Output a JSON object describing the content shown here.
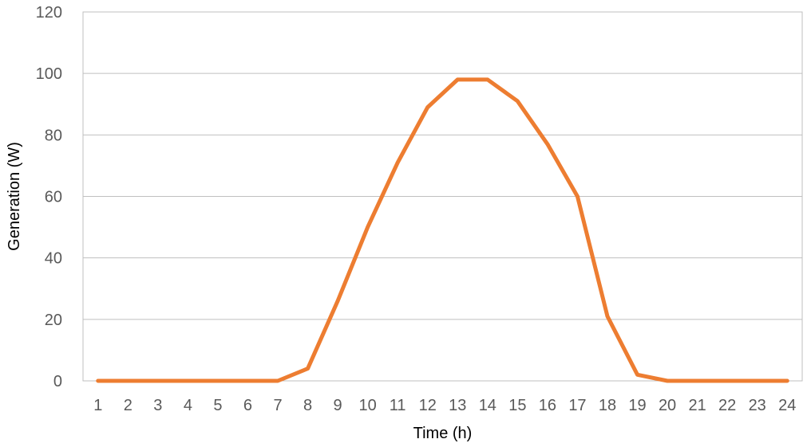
{
  "chart_data": {
    "type": "line",
    "title": "",
    "xlabel": "Time (h)",
    "ylabel": "Generation (W)",
    "categories": [
      "1",
      "2",
      "3",
      "4",
      "5",
      "6",
      "7",
      "8",
      "9",
      "10",
      "11",
      "12",
      "13",
      "14",
      "15",
      "16",
      "17",
      "18",
      "19",
      "20",
      "21",
      "22",
      "23",
      "24"
    ],
    "series": [
      {
        "values": [
          0,
          0,
          0,
          0,
          0,
          0,
          0,
          4,
          26,
          50,
          71,
          89,
          98,
          98,
          91,
          77,
          60,
          21,
          2,
          0,
          0,
          0,
          0,
          0
        ],
        "color": "#ED7D31"
      }
    ],
    "ylim": [
      0,
      120
    ],
    "yticks": [
      "0",
      "20",
      "40",
      "60",
      "80",
      "100",
      "120"
    ],
    "grid": true,
    "legend": "none"
  }
}
